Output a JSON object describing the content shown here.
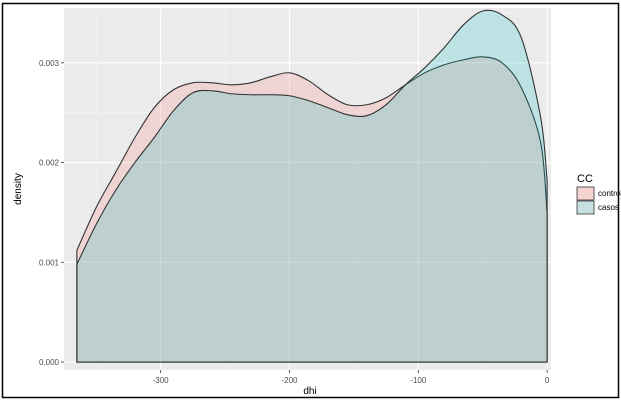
{
  "chart_data": {
    "type": "area",
    "subtype": "density",
    "xlabel": "dhi",
    "ylabel": "density",
    "xlim": [
      -375,
      3
    ],
    "ylim": [
      -8e-05,
      0.00355
    ],
    "x_ticks": [
      -300,
      -200,
      -100,
      0
    ],
    "x_tick_labels": [
      "-300",
      "-200",
      "-100",
      "0"
    ],
    "y_ticks": [
      0.0,
      0.001,
      0.002,
      0.003
    ],
    "y_tick_labels": [
      "0.000",
      "0.001",
      "0.002",
      "0.003"
    ],
    "grid": true,
    "legend": {
      "title": "CC",
      "position": "right"
    },
    "series": [
      {
        "name": "control",
        "color": "#F8766D",
        "x": [
          -365,
          -350,
          -335,
          -320,
          -305,
          -290,
          -275,
          -260,
          -245,
          -230,
          -215,
          -200,
          -185,
          -170,
          -155,
          -140,
          -125,
          -110,
          -95,
          -80,
          -65,
          -50,
          -35,
          -20,
          -5,
          0
        ],
        "y": [
          0.00112,
          0.00155,
          0.0019,
          0.00225,
          0.00255,
          0.00273,
          0.0028,
          0.0028,
          0.00278,
          0.0028,
          0.00286,
          0.0029,
          0.00282,
          0.00268,
          0.00258,
          0.00258,
          0.00265,
          0.00278,
          0.0029,
          0.00298,
          0.00303,
          0.00306,
          0.003,
          0.00275,
          0.0022,
          0.00148
        ]
      },
      {
        "name": "casos",
        "color": "#00BFC4",
        "x": [
          -365,
          -350,
          -335,
          -320,
          -305,
          -290,
          -275,
          -260,
          -245,
          -230,
          -215,
          -200,
          -185,
          -170,
          -155,
          -140,
          -125,
          -110,
          -95,
          -80,
          -65,
          -50,
          -35,
          -20,
          -5,
          0
        ],
        "y": [
          0.00098,
          0.00138,
          0.00172,
          0.002,
          0.00225,
          0.00252,
          0.0027,
          0.00272,
          0.00269,
          0.00268,
          0.00268,
          0.00267,
          0.00262,
          0.00255,
          0.00248,
          0.00247,
          0.00258,
          0.00278,
          0.00295,
          0.00315,
          0.00338,
          0.00352,
          0.00348,
          0.00325,
          0.00245,
          0.00182
        ]
      }
    ]
  }
}
